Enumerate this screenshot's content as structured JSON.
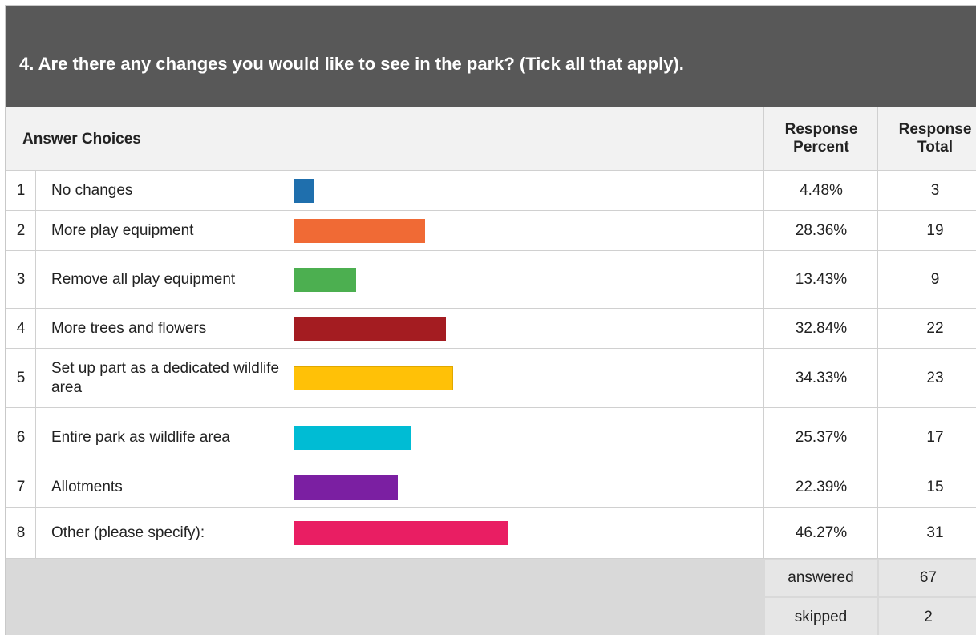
{
  "question": "4. Are there any changes you would like to see in the park? (Tick all that apply).",
  "columns": {
    "choices": "Answer Choices",
    "percent_line1": "Response",
    "percent_line2": "Percent",
    "total_line1": "Response",
    "total_line2": "Total"
  },
  "rows": [
    {
      "num": "1",
      "label": "No changes",
      "percent": "4.48%",
      "total": "3",
      "fraction": 0.0448,
      "color": "#1f6fad"
    },
    {
      "num": "2",
      "label": "More play equipment",
      "percent": "28.36%",
      "total": "19",
      "fraction": 0.2836,
      "color": "#f06a35"
    },
    {
      "num": "3",
      "label": "Remove all play equipment",
      "percent": "13.43%",
      "total": "9",
      "fraction": 0.1343,
      "color": "#4caf50"
    },
    {
      "num": "4",
      "label": "More trees and flowers",
      "percent": "32.84%",
      "total": "22",
      "fraction": 0.3284,
      "color": "#a41c21"
    },
    {
      "num": "5",
      "label": "Set up part as a dedicated wildlife area",
      "percent": "34.33%",
      "total": "23",
      "fraction": 0.3433,
      "color": "#ffc107"
    },
    {
      "num": "6",
      "label": "Entire park as wildlife area",
      "percent": "25.37%",
      "total": "17",
      "fraction": 0.2537,
      "color": "#00bcd4"
    },
    {
      "num": "7",
      "label": "Allotments",
      "percent": "22.39%",
      "total": "15",
      "fraction": 0.2239,
      "color": "#7b1fa2"
    },
    {
      "num": "8",
      "label": "Other (please specify):",
      "percent": "46.27%",
      "total": "31",
      "fraction": 0.4627,
      "color": "#e91e63"
    }
  ],
  "summary": {
    "answered_label": "answered",
    "answered_value": "67",
    "skipped_label": "skipped",
    "skipped_value": "2"
  }
}
